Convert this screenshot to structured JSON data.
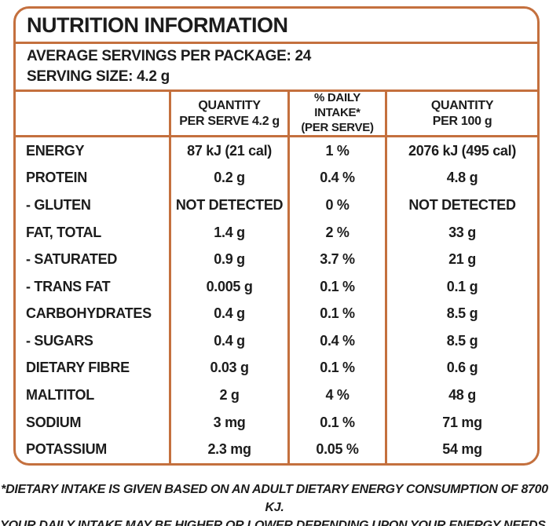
{
  "colors": {
    "border": "#C4703E",
    "text": "#1C1C1C"
  },
  "panel": {
    "title": "NUTRITION INFORMATION",
    "servings_per_package": "AVERAGE SERVINGS PER PACKAGE: 24",
    "serving_size": "SERVING SIZE: 4.2 g"
  },
  "table": {
    "columns": [
      "",
      "QUANTITY\nPER SERVE 4.2 g",
      "% DAILY INTAKE*\n(PER SERVE)",
      "QUANTITY\nPER 100 g"
    ],
    "rows": [
      {
        "nutrient": "ENERGY",
        "per_serve": "87 kJ (21 cal)",
        "daily_intake": "1 %",
        "per_100g": "2076 kJ (495 cal)"
      },
      {
        "nutrient": "PROTEIN",
        "per_serve": "0.2 g",
        "daily_intake": "0.4 %",
        "per_100g": "4.8 g"
      },
      {
        "nutrient": "- GLUTEN",
        "per_serve": "NOT DETECTED",
        "daily_intake": "0 %",
        "per_100g": "NOT DETECTED"
      },
      {
        "nutrient": "FAT, TOTAL",
        "per_serve": "1.4 g",
        "daily_intake": "2 %",
        "per_100g": "33 g"
      },
      {
        "nutrient": "- SATURATED",
        "per_serve": "0.9 g",
        "daily_intake": "3.7 %",
        "per_100g": "21 g"
      },
      {
        "nutrient": "- TRANS FAT",
        "per_serve": "0.005 g",
        "daily_intake": "0.1 %",
        "per_100g": "0.1 g"
      },
      {
        "nutrient": "CARBOHYDRATES",
        "per_serve": "0.4 g",
        "daily_intake": "0.1 %",
        "per_100g": "8.5 g"
      },
      {
        "nutrient": "- SUGARS",
        "per_serve": "0.4 g",
        "daily_intake": "0.4 %",
        "per_100g": "8.5 g"
      },
      {
        "nutrient": "DIETARY FIBRE",
        "per_serve": "0.03 g",
        "daily_intake": "0.1 %",
        "per_100g": "0.6 g"
      },
      {
        "nutrient": "MALTITOL",
        "per_serve": "2 g",
        "daily_intake": "4 %",
        "per_100g": "48 g"
      },
      {
        "nutrient": "SODIUM",
        "per_serve": "3 mg",
        "daily_intake": "0.1 %",
        "per_100g": "71 mg"
      },
      {
        "nutrient": "POTASSIUM",
        "per_serve": "2.3 mg",
        "daily_intake": "0.05 %",
        "per_100g": "54 mg"
      }
    ]
  },
  "footnote": {
    "line1": "*DIETARY INTAKE IS GIVEN BASED ON AN ADULT DIETARY ENERGY CONSUMPTION OF 8700 KJ.",
    "line2": "YOUR DAILY INTAKE MAY BE HIGHER OR LOWER DEPENDING UPON YOUR ENERGY NEEDS."
  }
}
